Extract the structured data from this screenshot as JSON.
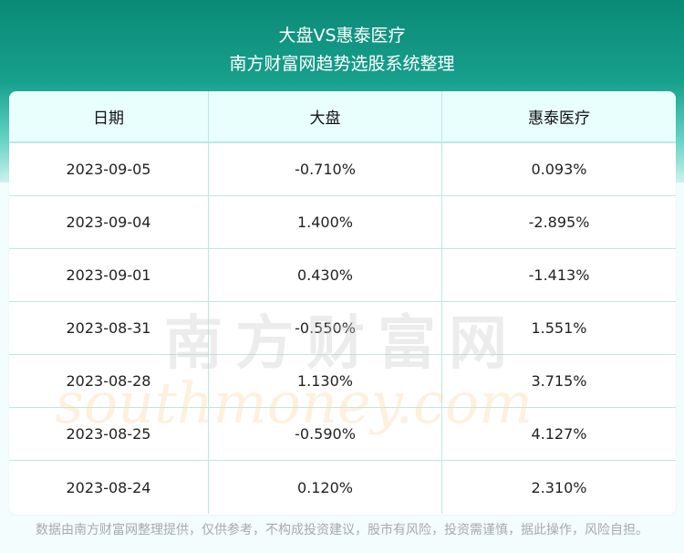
{
  "header": {
    "title": "大盘VS惠泰医疗",
    "subtitle": "南方财富网趋势选股系统整理"
  },
  "table": {
    "columns": [
      "日期",
      "大盘",
      "惠泰医疗"
    ],
    "rows": [
      [
        "2023-09-05",
        "-0.710%",
        "0.093%"
      ],
      [
        "2023-09-04",
        "1.400%",
        "-2.895%"
      ],
      [
        "2023-09-01",
        "0.430%",
        "-1.413%"
      ],
      [
        "2023-08-31",
        "-0.550%",
        "1.551%"
      ],
      [
        "2023-08-28",
        "1.130%",
        "3.715%"
      ],
      [
        "2023-08-25",
        "-0.590%",
        "4.127%"
      ],
      [
        "2023-08-24",
        "0.120%",
        "2.310%"
      ]
    ]
  },
  "watermark": {
    "cn": "南方财富网",
    "en": "southmoney.com"
  },
  "footer": {
    "disclaimer": "数据由南方财富网整理提供，仅供参考，不构成投资建议，股市有风险，投资需谨慎，据此操作，风险自担。"
  },
  "colors": {
    "header_bg": "#0b8a78",
    "table_head_bg": "#e8fffd",
    "border": "#bfe6e3"
  }
}
